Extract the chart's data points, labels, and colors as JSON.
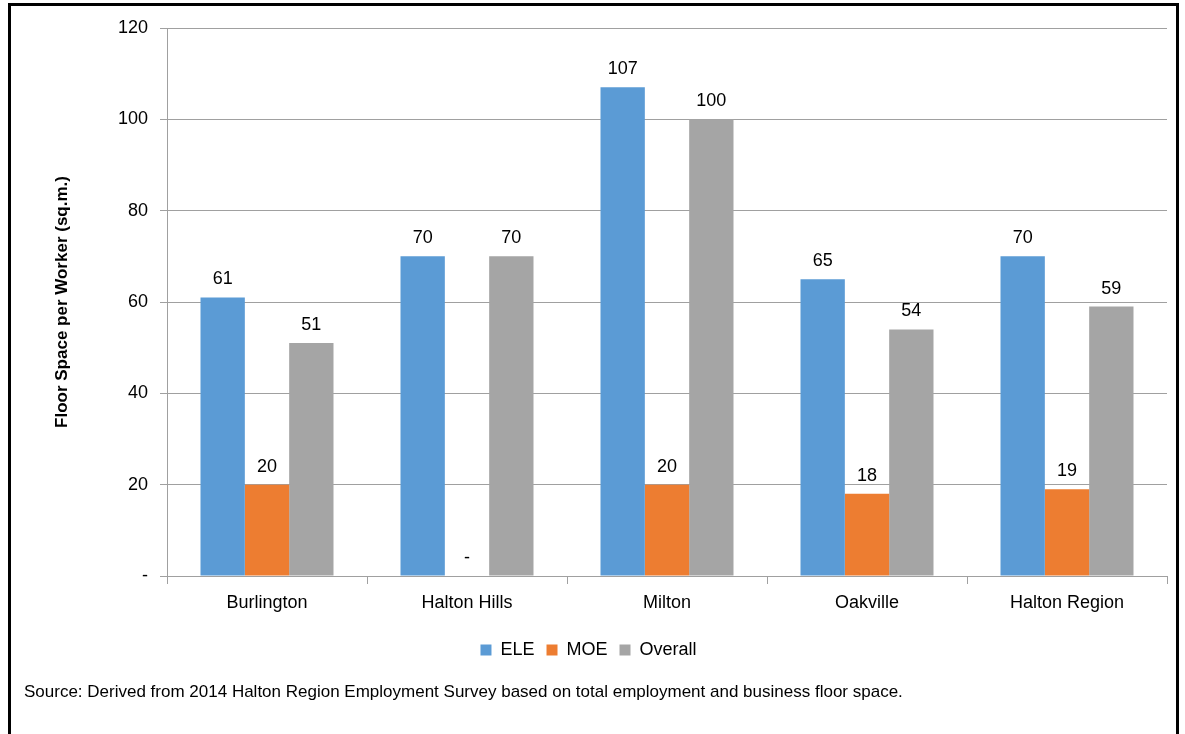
{
  "chart_data": {
    "type": "bar",
    "ylabel": "Floor Space per Worker (sq.m.)",
    "categories": [
      "Burlington",
      "Halton Hills",
      "Milton",
      "Oakville",
      "Halton Region"
    ],
    "series": [
      {
        "name": "ELE",
        "color": "#5b9bd5",
        "values": [
          61,
          70,
          107,
          65,
          70
        ],
        "value_labels": [
          "61",
          "70",
          "107",
          "65",
          "70"
        ]
      },
      {
        "name": "MOE",
        "color": "#ed7d31",
        "values": [
          20,
          0,
          20,
          18,
          19
        ],
        "value_labels": [
          "20",
          "-",
          "20",
          "18",
          "19"
        ]
      },
      {
        "name": "Overall",
        "color": "#a5a5a5",
        "values": [
          51,
          70,
          100,
          54,
          59
        ],
        "value_labels": [
          "51",
          "70",
          "100",
          "54",
          "59"
        ]
      }
    ],
    "ylim": [
      0,
      120
    ],
    "yticks": [
      {
        "value": 0,
        "label": "-"
      },
      20,
      40,
      60,
      80,
      100,
      120
    ],
    "grid": "y",
    "legend": "bottom",
    "annotations": [
      "Source: Derived from 2014 Halton Region Employment Survey based on total employment and business floor space."
    ]
  }
}
